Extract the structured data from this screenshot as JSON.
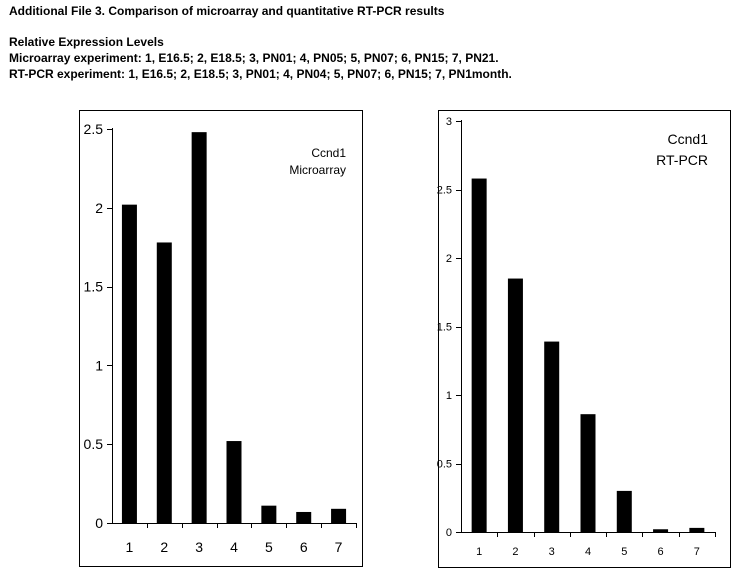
{
  "header": {
    "title": "Additional File 3. Comparison of microarray and quantitative RT-PCR results",
    "subtitle": "Relative Expression Levels",
    "microarray_line": "Microarray experiment: 1, E16.5; 2, E18.5; 3, PN01; 4, PN05; 5, PN07; 6, PN15; 7, PN21.",
    "rtpcr_line": "RT-PCR experiment: 1, E16.5; 2, E18.5; 3, PN01; 4, PN04; 5, PN07; 6, PN15; 7, PN1month."
  },
  "chart_data": [
    {
      "type": "bar",
      "categories": [
        "1",
        "2",
        "3",
        "4",
        "5",
        "6",
        "7"
      ],
      "values": [
        2.02,
        1.78,
        2.48,
        0.52,
        0.11,
        0.07,
        0.09
      ],
      "annotation": [
        "Ccnd1",
        "Microarray"
      ],
      "ylim": [
        0,
        2.5
      ],
      "yticks": [
        "0",
        "0.5",
        "1",
        "1.5",
        "2",
        "2.5"
      ],
      "bar_color": "#000000",
      "grid": false
    },
    {
      "type": "bar",
      "categories": [
        "1",
        "2",
        "3",
        "4",
        "5",
        "6",
        "7"
      ],
      "values": [
        2.58,
        1.85,
        1.39,
        0.86,
        0.3,
        0.02,
        0.03
      ],
      "annotation": [
        "Ccnd1",
        "RT-PCR"
      ],
      "ylim": [
        0,
        3
      ],
      "yticks": [
        "0",
        "0.5",
        "1",
        "1.5",
        "2",
        "2.5",
        "3"
      ],
      "bar_color": "#000000",
      "grid": false
    }
  ]
}
